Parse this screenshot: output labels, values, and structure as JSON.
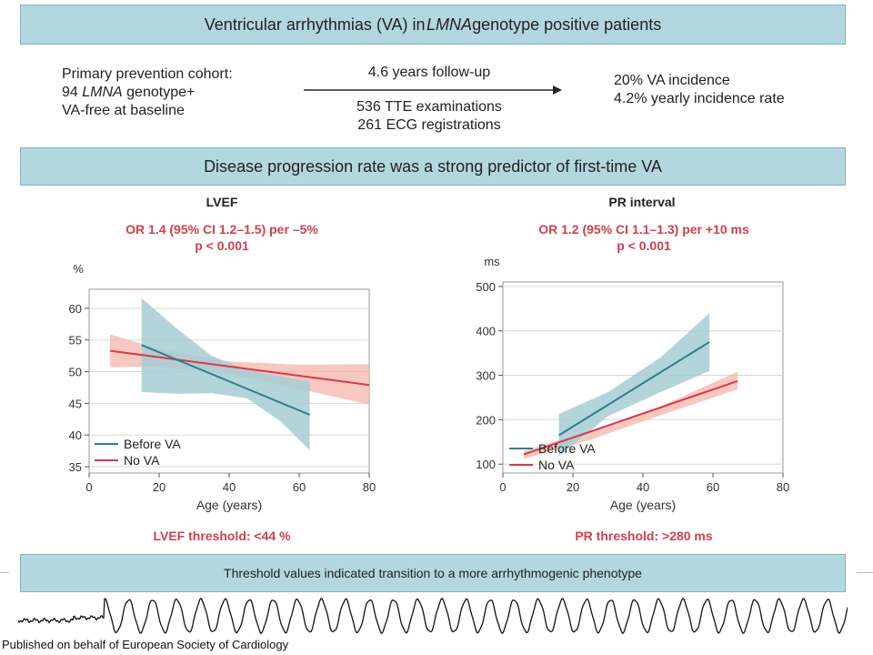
{
  "header": {
    "title_prefix": "Ventricular arrhythmias (VA) in ",
    "title_em": "LMNA",
    "title_suffix": " genotype positive patients"
  },
  "cohort": {
    "line1": "Primary prevention cohort:",
    "line2_prefix": "94 ",
    "line2_em": "LMNA",
    "line2_suffix": " genotype+",
    "line3": "VA-free at baseline"
  },
  "followup": {
    "duration": "4.6 years follow-up",
    "tte": "536 TTE examinations",
    "ecg": "261 ECG registrations"
  },
  "results": {
    "incidence": "20% VA incidence",
    "yearly": "4.2% yearly incidence rate"
  },
  "section_banner": "Disease progression rate was a strong predictor of first-time VA",
  "footer_banner": "Threshold values indicated transition to a more arrhythmogenic phenotype",
  "publisher": "Published on behalf of European Society of Cardiology",
  "colors": {
    "banner": "#b3d7de",
    "before_va": "#2f7f8c",
    "before_va_band": "#a6cdd5",
    "no_va": "#d9374c",
    "no_va_band": "#f4b5aa",
    "accent_text": "#d0404f"
  },
  "chart_data": [
    {
      "type": "line",
      "title": "LVEF",
      "annotation_line1": "OR 1.4 (95% CI 1.2–1.5) per –5%",
      "annotation_line2": "p < 0.001",
      "threshold": "LVEF threshold: <44 %",
      "xlabel": "Age (years)",
      "ylabel": "%",
      "xlim": [
        0,
        80
      ],
      "ylim": [
        34,
        63
      ],
      "xticks": [
        0,
        20,
        40,
        60,
        80
      ],
      "yticks": [
        35,
        40,
        45,
        50,
        55,
        60
      ],
      "grid": true,
      "legend": "bottom-left",
      "series": [
        {
          "name": "Before VA",
          "x": [
            15,
            63
          ],
          "y": [
            54.2,
            43.2
          ],
          "band_x": [
            15,
            25,
            35,
            45,
            55,
            63
          ],
          "band_upper": [
            61.6,
            56.8,
            52.5,
            50.3,
            49.2,
            48.5
          ],
          "band_lower": [
            46.8,
            46.5,
            46.6,
            45.8,
            42.0,
            37.6
          ]
        },
        {
          "name": "No VA",
          "x": [
            6,
            80
          ],
          "y": [
            53.3,
            47.9
          ],
          "band_x": [
            6,
            20,
            40,
            60,
            80
          ],
          "band_upper": [
            55.9,
            53.6,
            51.6,
            51.1,
            51.2
          ],
          "band_lower": [
            50.7,
            50.8,
            49.6,
            47.3,
            44.8
          ]
        }
      ]
    },
    {
      "type": "line",
      "title": "PR interval",
      "annotation_line1": "OR 1.2 (95% CI 1.1–1.3) per +10 ms",
      "annotation_line2": "p < 0.001",
      "threshold": "PR threshold: >280 ms",
      "xlabel": "Age (years)",
      "ylabel": "ms",
      "xlim": [
        0,
        80
      ],
      "ylim": [
        80,
        510
      ],
      "xticks": [
        0,
        20,
        40,
        60,
        80
      ],
      "yticks": [
        100,
        200,
        300,
        400,
        500
      ],
      "grid": true,
      "legend": "bottom-left",
      "series": [
        {
          "name": "Before VA",
          "x": [
            16,
            59
          ],
          "y": [
            165,
            375
          ],
          "band_x": [
            16,
            30,
            45,
            59
          ],
          "band_upper": [
            213,
            262,
            340,
            440
          ],
          "band_lower": [
            118,
            208,
            262,
            310
          ]
        },
        {
          "name": "No VA",
          "x": [
            6,
            67
          ],
          "y": [
            122,
            287
          ],
          "band_x": [
            6,
            25,
            45,
            67
          ],
          "band_upper": [
            130,
            175,
            230,
            308
          ],
          "band_lower": [
            112,
            155,
            210,
            268
          ]
        }
      ]
    }
  ]
}
